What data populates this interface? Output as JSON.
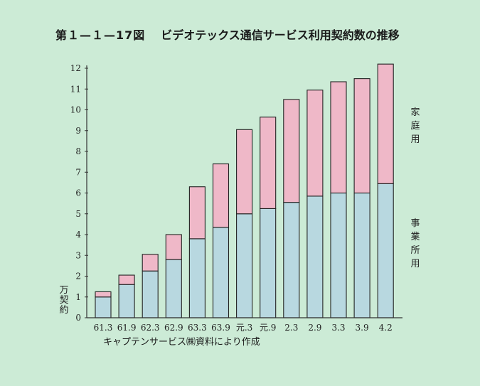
{
  "title": {
    "number": "第１—１—17図",
    "text": "ビデオテックス通信サービス利用契約数の推移"
  },
  "source": "キャプテンサービス㈱資料により作成",
  "chart_data": {
    "type": "bar",
    "stacked": true,
    "categories": [
      "61.3",
      "61.9",
      "62.3",
      "62.9",
      "63.3",
      "63.9",
      "元.3",
      "元.9",
      "2.3",
      "2.9",
      "3.3",
      "3.9",
      "4.2"
    ],
    "series": [
      {
        "name": "事業所用",
        "color": "#b8d8e0",
        "values": [
          1.0,
          1.6,
          2.25,
          2.8,
          3.8,
          4.35,
          5.0,
          5.25,
          5.55,
          5.85,
          6.0,
          6.0,
          6.45
        ]
      },
      {
        "name": "家庭用",
        "color": "#efb8c8",
        "values": [
          0.25,
          0.45,
          0.8,
          1.2,
          2.5,
          3.05,
          4.05,
          4.4,
          4.95,
          5.1,
          5.35,
          5.5,
          5.75
        ]
      }
    ],
    "ylabel": "万契約",
    "ylim": [
      0,
      12
    ],
    "yticks": [
      "0",
      "1",
      "2",
      "3",
      "4",
      "5",
      "6",
      "7",
      "8",
      "9",
      "10",
      "11",
      "12"
    ],
    "grid": false,
    "legend": "right, labels beside top of stacks"
  }
}
